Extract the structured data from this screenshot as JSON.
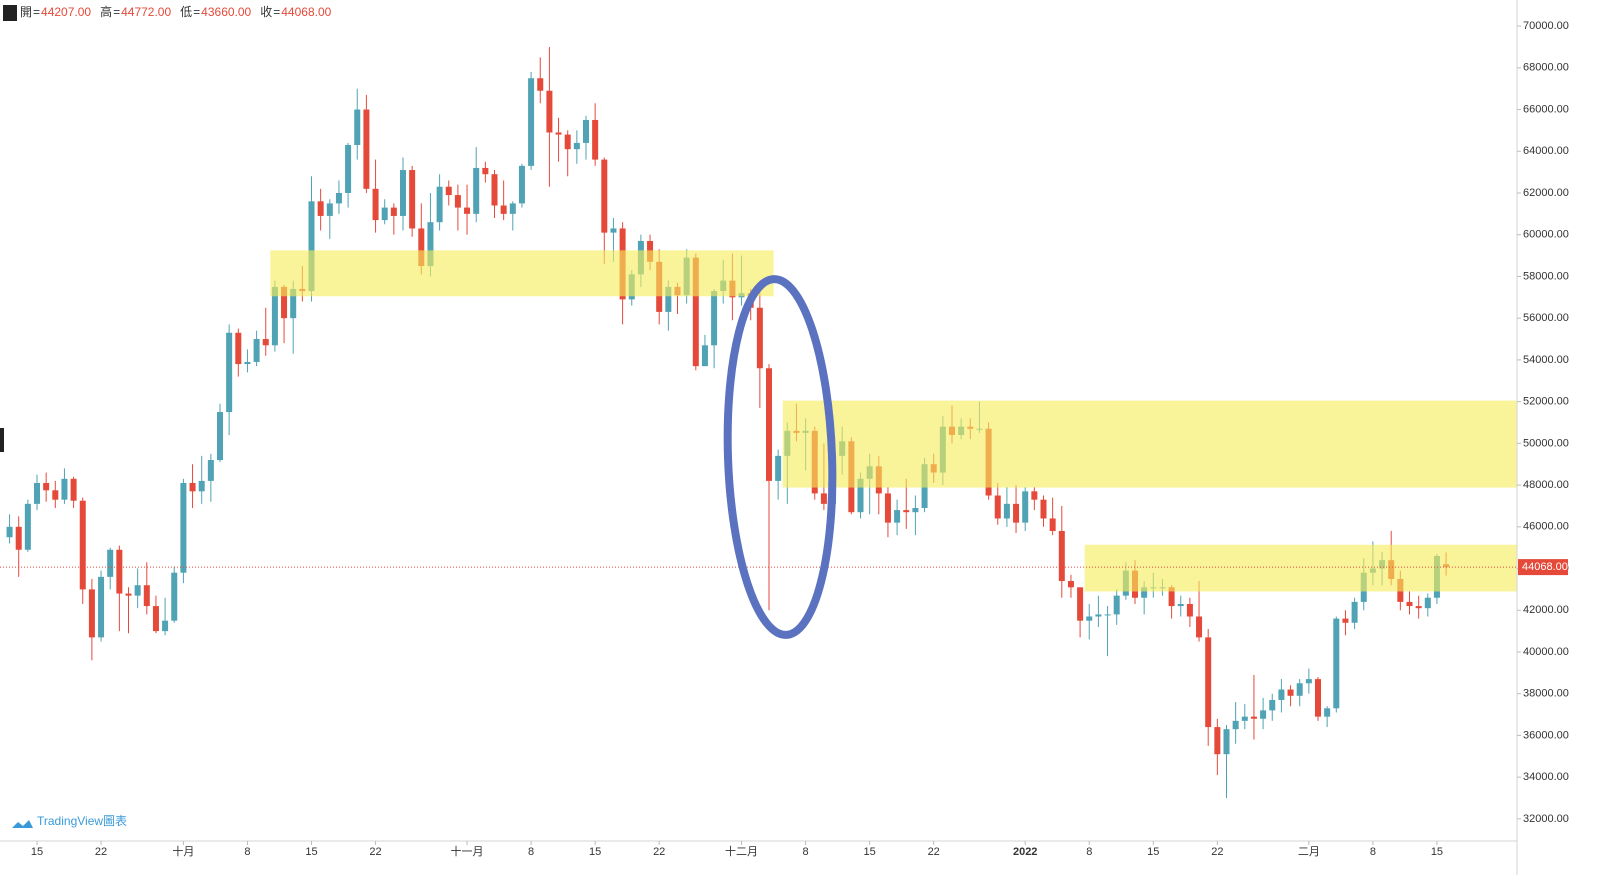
{
  "chart_data": {
    "type": "candlestick",
    "header": {
      "labels": [
        "開",
        "高",
        "低",
        "收"
      ],
      "values": [
        "44207.00",
        "44772.00",
        "43660.00",
        "44068.00"
      ]
    },
    "brand": "TradingView圖表",
    "categories": [
      null,
      null,
      null,
      "15",
      null,
      null,
      null,
      null,
      null,
      null,
      "22",
      null,
      null,
      null,
      null,
      null,
      null,
      null,
      null,
      "十月",
      null,
      null,
      null,
      null,
      null,
      null,
      "8",
      null,
      null,
      null,
      null,
      null,
      null,
      "15",
      null,
      null,
      null,
      null,
      null,
      null,
      "22",
      null,
      null,
      null,
      null,
      null,
      null,
      null,
      null,
      null,
      "十一月",
      null,
      null,
      null,
      null,
      null,
      null,
      "8",
      null,
      null,
      null,
      null,
      null,
      null,
      "15",
      null,
      null,
      null,
      null,
      null,
      null,
      "22",
      null,
      null,
      null,
      null,
      null,
      null,
      null,
      null,
      "十二月",
      null,
      null,
      null,
      null,
      null,
      null,
      "8",
      null,
      null,
      null,
      null,
      null,
      null,
      "15",
      null,
      null,
      null,
      null,
      null,
      null,
      "22",
      null,
      null,
      null,
      null,
      null,
      null,
      null,
      null,
      null,
      "2022",
      null,
      null,
      null,
      null,
      null,
      null,
      "8",
      null,
      null,
      null,
      null,
      null,
      null,
      "15",
      null,
      null,
      null,
      null,
      null,
      null,
      "22",
      null,
      null,
      null,
      null,
      null,
      null,
      null,
      null,
      null,
      "二月",
      null,
      null,
      null,
      null,
      null,
      null,
      "8",
      null,
      null,
      null,
      null,
      null,
      null,
      "15",
      null
    ],
    "open": [
      45500,
      46000,
      44900,
      47100,
      48100,
      47750,
      47300,
      48300,
      47250,
      43000,
      40700,
      43600,
      44900,
      42800,
      42700,
      43200,
      42200,
      41000,
      41500,
      43800,
      48100,
      47700,
      48200,
      49200,
      51500,
      55300,
      53800,
      53900,
      55000,
      54700,
      57500,
      56000,
      57400,
      57300,
      61600,
      60900,
      61500,
      62000,
      64300,
      66000,
      62200,
      60700,
      61300,
      60900,
      63100,
      60300,
      58500,
      60600,
      62300,
      61900,
      61300,
      61000,
      63200,
      62900,
      61400,
      61000,
      61500,
      63300,
      67500,
      66900,
      64900,
      64800,
      64100,
      64400,
      65500,
      63600,
      60100,
      60300,
      56900,
      58100,
      59700,
      58700,
      56300,
      57500,
      57100,
      58900,
      53700,
      54700,
      57300,
      57800,
      57000,
      57200,
      56500,
      53600,
      48200,
      49400,
      50600,
      50500,
      50600,
      47600,
      47100,
      49400,
      50100,
      46700,
      48300,
      48900,
      47600,
      46200,
      46800,
      46700,
      46900,
      49000,
      48600,
      50800,
      50400,
      50800,
      50700,
      50700,
      47500,
      46400,
      47100,
      46200,
      47700,
      47300,
      46400,
      45800,
      43400,
      43100,
      41500,
      41700,
      41800,
      41800,
      42700,
      43900,
      42600,
      43100,
      43100,
      43100,
      42200,
      42300,
      41700,
      40700,
      36400,
      35100,
      36300,
      36700,
      36900,
      36800,
      37200,
      37700,
      38200,
      37900,
      38500,
      38700,
      36900,
      37300,
      41600,
      41400,
      42400,
      43800,
      44000,
      44400,
      43500,
      42400,
      42200,
      42100,
      42600,
      44207
    ],
    "high": [
      46600,
      46500,
      47300,
      48500,
      48600,
      48200,
      48800,
      48400,
      47400,
      43500,
      43900,
      45000,
      45100,
      43100,
      44000,
      44300,
      42700,
      42600,
      44100,
      48300,
      49000,
      49400,
      49500,
      51900,
      55700,
      55500,
      54500,
      55400,
      56500,
      57800,
      57600,
      57800,
      58500,
      62800,
      62200,
      61700,
      62600,
      64400,
      67000,
      66700,
      63600,
      61700,
      61500,
      63700,
      63300,
      61500,
      62000,
      62900,
      62600,
      62400,
      62400,
      64200,
      63500,
      63100,
      62600,
      61600,
      63400,
      67800,
      68500,
      69000,
      65600,
      65000,
      65000,
      65700,
      66300,
      63700,
      60800,
      60600,
      58300,
      60000,
      60000,
      59300,
      57800,
      57700,
      59300,
      59100,
      55200,
      57400,
      58800,
      59100,
      59000,
      57400,
      57600,
      53800,
      49700,
      51000,
      51900,
      51200,
      50800,
      50000,
      49500,
      50800,
      50300,
      48600,
      49500,
      49400,
      47900,
      47300,
      48300,
      47500,
      49300,
      49500,
      51300,
      51800,
      51200,
      51200,
      52000,
      51000,
      48100,
      47900,
      48000,
      47900,
      47900,
      47500,
      47400,
      47000,
      43700,
      43100,
      42300,
      42700,
      42200,
      43000,
      44300,
      44400,
      43400,
      43800,
      43500,
      43200,
      42700,
      42600,
      43400,
      41100,
      36800,
      36500,
      37600,
      37500,
      38900,
      37800,
      38000,
      38700,
      38400,
      38700,
      39200,
      38800,
      37400,
      41700,
      42000,
      42600,
      44500,
      45300,
      44800,
      45800,
      43900,
      42900,
      42700,
      42800,
      44700,
      44772
    ],
    "low": [
      45200,
      43600,
      44800,
      46800,
      47200,
      46900,
      47100,
      46900,
      42300,
      39600,
      40500,
      43000,
      41000,
      40900,
      42100,
      41800,
      40900,
      40800,
      41400,
      43300,
      46900,
      47100,
      47200,
      49100,
      50400,
      53200,
      53400,
      53700,
      54200,
      54400,
      54800,
      54300,
      56800,
      56800,
      60200,
      59800,
      61000,
      61300,
      63600,
      62000,
      60100,
      60500,
      60000,
      60200,
      59900,
      58100,
      58000,
      60200,
      61400,
      60200,
      60000,
      60600,
      62500,
      60800,
      60700,
      60200,
      61300,
      63100,
      66300,
      62300,
      63500,
      62800,
      63400,
      63600,
      63300,
      58600,
      58700,
      55700,
      56600,
      57500,
      58300,
      55700,
      55400,
      56200,
      56700,
      53500,
      53700,
      53600,
      56700,
      55900,
      56600,
      55900,
      51700,
      42000,
      47300,
      47100,
      50100,
      48700,
      47300,
      46800,
      46900,
      48500,
      46600,
      46400,
      46600,
      46600,
      45500,
      45600,
      45900,
      45600,
      46700,
      48100,
      48000,
      50000,
      50200,
      50200,
      50500,
      47300,
      46100,
      46000,
      45700,
      45800,
      46800,
      46000,
      45600,
      42600,
      42600,
      40700,
      40600,
      41200,
      39800,
      41300,
      42500,
      42300,
      41800,
      42600,
      42700,
      41600,
      41700,
      41200,
      40500,
      35500,
      34100,
      33000,
      35600,
      36300,
      35800,
      36300,
      36700,
      37100,
      37400,
      37400,
      38000,
      36700,
      36400,
      37100,
      40800,
      41100,
      42000,
      43200,
      43200,
      43200,
      42000,
      41800,
      41600,
      41700,
      42300,
      43660
    ],
    "close": [
      46000,
      44900,
      47100,
      48100,
      47750,
      47300,
      48300,
      47250,
      43000,
      40700,
      43600,
      44900,
      42800,
      42700,
      43200,
      42200,
      41000,
      41500,
      43800,
      48100,
      47700,
      48200,
      49200,
      51500,
      55300,
      53800,
      53900,
      55000,
      54700,
      57500,
      56000,
      57400,
      57300,
      61600,
      60900,
      61500,
      62000,
      64300,
      66000,
      62200,
      60700,
      61300,
      60900,
      63100,
      60300,
      58500,
      60600,
      62300,
      61900,
      61300,
      61000,
      63200,
      62900,
      61400,
      61000,
      61500,
      63300,
      67500,
      66900,
      64900,
      64800,
      64100,
      64400,
      65500,
      63600,
      60100,
      60300,
      56900,
      58100,
      59700,
      58700,
      56300,
      57500,
      57100,
      58900,
      53700,
      54700,
      57300,
      57800,
      57000,
      57200,
      56500,
      53600,
      48200,
      49400,
      50600,
      50500,
      50600,
      47600,
      47100,
      49400,
      50100,
      46700,
      48300,
      48900,
      47600,
      46200,
      46800,
      46700,
      46900,
      49000,
      48600,
      50800,
      50400,
      50800,
      50700,
      50700,
      47500,
      46400,
      47100,
      46200,
      47700,
      47300,
      46400,
      45800,
      43400,
      43100,
      41500,
      41700,
      41800,
      41800,
      42700,
      43900,
      42600,
      43100,
      43100,
      43100,
      42200,
      42300,
      41700,
      40700,
      36400,
      35100,
      36300,
      36700,
      36900,
      36800,
      37200,
      37700,
      38200,
      37900,
      38500,
      38700,
      36900,
      37300,
      41600,
      41400,
      42400,
      43800,
      44000,
      44400,
      43500,
      42400,
      42200,
      42100,
      42600,
      44600,
      44068
    ],
    "up_color": "#4fa3b4",
    "down_color": "#e5493a",
    "zones": [
      {
        "start": 29,
        "end": 83,
        "low": 57050,
        "high": 59250
      },
      {
        "start": 85,
        "end": 157,
        "low": 47880,
        "high": 52050
      },
      {
        "start": 118,
        "end": 157,
        "low": 42900,
        "high": 45140
      }
    ],
    "zone_color": "#f5ec5a",
    "last_price": 44068,
    "last_price_label": "44068.00",
    "ylim": [
      30940,
      71250
    ],
    "yticks": [
      {
        "value": 32000,
        "label": "32000.00"
      },
      {
        "value": 34000,
        "label": "34000.00"
      },
      {
        "value": 36000,
        "label": "36000.00"
      },
      {
        "value": 38000,
        "label": "38000.00"
      },
      {
        "value": 40000,
        "label": "40000.00"
      },
      {
        "value": 42000,
        "label": "42000.00"
      },
      {
        "value": 44000,
        "label": "44000.00"
      },
      {
        "value": 46000,
        "label": "46000.00"
      },
      {
        "value": 48000,
        "label": "48000.00"
      },
      {
        "value": 50000,
        "label": "50000.00"
      },
      {
        "value": 52000,
        "label": "52000.00"
      },
      {
        "value": 54000,
        "label": "54000.00"
      },
      {
        "value": 56000,
        "label": "56000.00"
      },
      {
        "value": 58000,
        "label": "58000.00"
      },
      {
        "value": 60000,
        "label": "60000.00"
      },
      {
        "value": 62000,
        "label": "62000.00"
      },
      {
        "value": 64000,
        "label": "64000.00"
      },
      {
        "value": 66000,
        "label": "66000.00"
      },
      {
        "value": 68000,
        "label": "68000.00"
      },
      {
        "value": 70000,
        "label": "70000.00"
      }
    ]
  }
}
